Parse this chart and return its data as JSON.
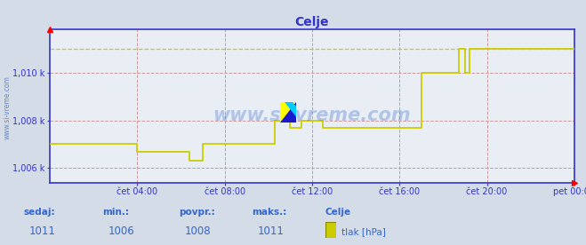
{
  "title": "Celje",
  "bg_color": "#d4dce8",
  "plot_bg_color": "#e8eef4",
  "line_color": "#cccc00",
  "grid_color": "#cc9999",
  "axis_color": "#3333cc",
  "ylim": [
    1005.4,
    1011.8
  ],
  "yticks": [
    1006,
    1008,
    1010
  ],
  "ytick_labels": [
    "1,006 k",
    "1,008 k",
    "1,010 k"
  ],
  "xtick_labels": [
    "čet 04:00",
    "čet 08:00",
    "čet 12:00",
    "čet 16:00",
    "čet 20:00",
    "pet 00:00"
  ],
  "xtick_positions": [
    4,
    8,
    12,
    16,
    20,
    24
  ],
  "time_hours": [
    0.0,
    0.5,
    1.0,
    1.5,
    2.0,
    2.5,
    3.0,
    3.5,
    4.0,
    4.5,
    5.0,
    5.5,
    6.0,
    6.4,
    6.6,
    7.0,
    7.5,
    8.0,
    8.5,
    9.0,
    9.5,
    10.0,
    10.3,
    10.5,
    11.0,
    11.3,
    11.5,
    12.0,
    12.5,
    13.0,
    13.5,
    14.0,
    14.5,
    15.0,
    15.5,
    16.0,
    16.5,
    17.0,
    17.5,
    17.8,
    18.2,
    18.5,
    18.7,
    19.0,
    19.2,
    19.5,
    20.0,
    20.5,
    21.0,
    21.5,
    22.0,
    22.5,
    23.0,
    23.5,
    24.0
  ],
  "pressure": [
    1007.0,
    1007.0,
    1007.0,
    1007.0,
    1007.0,
    1007.0,
    1007.0,
    1007.0,
    1006.7,
    1006.7,
    1006.7,
    1006.7,
    1006.7,
    1006.3,
    1006.3,
    1007.0,
    1007.0,
    1007.0,
    1007.0,
    1007.0,
    1007.0,
    1007.0,
    1008.0,
    1008.0,
    1007.7,
    1007.7,
    1008.0,
    1008.0,
    1007.7,
    1007.7,
    1007.7,
    1007.7,
    1007.7,
    1007.7,
    1007.7,
    1007.7,
    1007.7,
    1010.0,
    1010.0,
    1010.0,
    1010.0,
    1010.0,
    1011.0,
    1010.0,
    1011.0,
    1011.0,
    1011.0,
    1011.0,
    1011.0,
    1011.0,
    1011.0,
    1011.0,
    1011.0,
    1011.0,
    1011.0
  ],
  "max_value": 1011.0,
  "sedaj": "1011",
  "min_val": "1006",
  "povpr": "1008",
  "maks": "1011",
  "station": "Celje",
  "unit": "tlak [hPa]",
  "label_color": "#3366cc",
  "watermark": "www.si-vreme.com",
  "watermark_color": "#3366cc",
  "watermark_alpha": 0.3,
  "left_label": "www.si-vreme.com"
}
